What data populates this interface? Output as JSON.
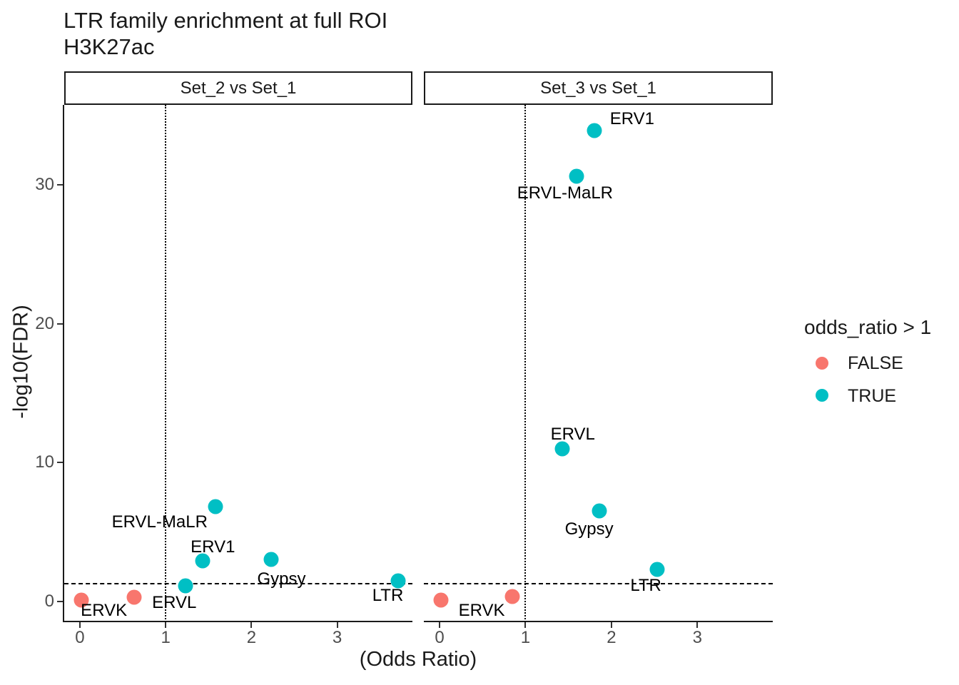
{
  "title": "LTR family enrichment at full ROI",
  "subtitle": "H3K27ac",
  "axes": {
    "x_label": "(Odds Ratio)",
    "y_label": "-log10(FDR)",
    "x_ticks": [
      0,
      1,
      2,
      3
    ],
    "y_ticks": [
      0,
      10,
      20,
      30
    ]
  },
  "legend": {
    "title": "odds_ratio > 1",
    "items": [
      {
        "label": "FALSE",
        "color": "#F8766D"
      },
      {
        "label": "TRUE",
        "color": "#00BFC4"
      }
    ]
  },
  "colors": {
    "false_color": "#F8766D",
    "true_color": "#00BFC4"
  },
  "chart_data": {
    "type": "scatter",
    "title": "LTR family enrichment at full ROI",
    "subtitle": "H3K27ac",
    "xlabel": "(Odds Ratio)",
    "ylabel": "-log10(FDR)",
    "x_domain": [
      -0.183,
      3.877
    ],
    "y_domain": [
      -1.5,
      35.75
    ],
    "threshold_hline_fdr": 1.3,
    "threshold_vline_or": 1,
    "grid": false,
    "legend_position": "right",
    "facets": [
      {
        "label": "Set_2 vs Set_1",
        "points": [
          {
            "or": 0.02,
            "fdr": 0.1,
            "sig": false
          },
          {
            "or": 0.63,
            "fdr": 0.3,
            "sig": false
          },
          {
            "or": 1.23,
            "fdr": 1.1,
            "sig": true
          },
          {
            "or": 1.43,
            "fdr": 2.9,
            "sig": true
          },
          {
            "or": 1.58,
            "fdr": 6.8,
            "sig": true
          },
          {
            "or": 2.23,
            "fdr": 3.0,
            "sig": true
          },
          {
            "or": 3.71,
            "fdr": 1.5,
            "sig": true
          }
        ],
        "labels": [
          {
            "text": "ERVK",
            "or": 0.28,
            "fdr": -0.7
          },
          {
            "text": "ERVL",
            "or": 1.1,
            "fdr": -0.1
          },
          {
            "text": "ERV1",
            "or": 1.55,
            "fdr": 3.9
          },
          {
            "text": "ERVL-MaLR",
            "or": 0.93,
            "fdr": 5.7
          },
          {
            "text": "Gypsy",
            "or": 2.35,
            "fdr": 1.6
          },
          {
            "text": "LTR",
            "or": 3.59,
            "fdr": 0.4
          }
        ]
      },
      {
        "label": "Set_3 vs Set_1",
        "points": [
          {
            "or": 0.02,
            "fdr": 0.1,
            "sig": false
          },
          {
            "or": 0.85,
            "fdr": 0.35,
            "sig": false
          },
          {
            "or": 1.43,
            "fdr": 11.0,
            "sig": true
          },
          {
            "or": 1.59,
            "fdr": 30.6,
            "sig": true
          },
          {
            "or": 1.8,
            "fdr": 33.9,
            "sig": true
          },
          {
            "or": 1.86,
            "fdr": 6.5,
            "sig": true
          },
          {
            "or": 2.53,
            "fdr": 2.3,
            "sig": true
          }
        ],
        "labels": [
          {
            "text": "ERVK",
            "or": 0.49,
            "fdr": -0.7
          },
          {
            "text": "ERVL",
            "or": 1.55,
            "fdr": 12.0
          },
          {
            "text": "ERVL-MaLR",
            "or": 1.46,
            "fdr": 29.4
          },
          {
            "text": "ERV1",
            "or": 2.24,
            "fdr": 34.7
          },
          {
            "text": "Gypsy",
            "or": 1.74,
            "fdr": 5.2
          },
          {
            "text": "LTR",
            "or": 2.4,
            "fdr": 1.1
          }
        ]
      }
    ]
  }
}
